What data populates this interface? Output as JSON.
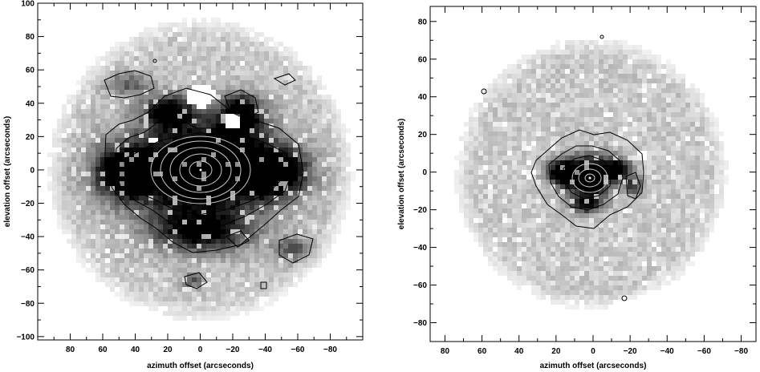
{
  "chart_data": [
    {
      "type": "heatmap",
      "xlabel": "azimuth offset (arcseconds)",
      "ylabel": "elevation offset (arcseconds)",
      "xlim": [
        100,
        -100
      ],
      "ylim": [
        -102,
        100
      ],
      "x_ticks": [
        80,
        60,
        40,
        20,
        0,
        -20,
        -40,
        -60,
        -80
      ],
      "y_ticks": [
        100,
        80,
        60,
        40,
        20,
        0,
        -20,
        -40,
        -60,
        -80,
        -100
      ],
      "x_tick_labels": [
        "80",
        "60",
        "40",
        "20",
        "0",
        "−20",
        "−40",
        "−60",
        "−80"
      ],
      "y_tick_labels": [
        "100",
        "80",
        "60",
        "40",
        "20",
        "0",
        "−20",
        "−40",
        "−60",
        "−80",
        "−100"
      ],
      "colormap": "grayscale",
      "contour_levels": 9,
      "peak": {
        "x": 0,
        "y": 0
      },
      "emission_extent_arcsec": 95
    },
    {
      "type": "heatmap",
      "xlabel": "azimuth offset (arcseconds)",
      "ylabel": "elevation offset (arcseconds)",
      "xlim": [
        88,
        -88
      ],
      "ylim": [
        -90,
        88
      ],
      "x_ticks": [
        80,
        60,
        40,
        20,
        0,
        -20,
        -40,
        -60,
        -80
      ],
      "y_ticks": [
        80,
        60,
        40,
        20,
        0,
        -20,
        -40,
        -60,
        -80
      ],
      "x_tick_labels": [
        "80",
        "60",
        "40",
        "20",
        "0",
        "−20",
        "−40",
        "−60",
        "−80"
      ],
      "y_tick_labels": [
        "80",
        "60",
        "40",
        "20",
        "0",
        "−20",
        "−40",
        "−60",
        "−80"
      ],
      "colormap": "grayscale",
      "contour_levels": 6,
      "peak": {
        "x": 0,
        "y": -2
      },
      "emission_extent_arcsec": 80
    }
  ]
}
